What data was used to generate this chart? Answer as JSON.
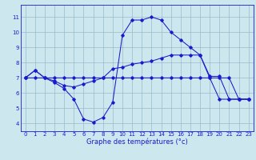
{
  "xlabel": "Graphe des températures (°c)",
  "ylim": [
    3.5,
    11.8
  ],
  "xlim": [
    -0.5,
    23.5
  ],
  "yticks": [
    4,
    5,
    6,
    7,
    8,
    9,
    10,
    11
  ],
  "xticks": [
    0,
    1,
    2,
    3,
    4,
    5,
    6,
    7,
    8,
    9,
    10,
    11,
    12,
    13,
    14,
    15,
    16,
    17,
    18,
    19,
    20,
    21,
    22,
    23
  ],
  "background_color": "#cce8ee",
  "line_color": "#1a1acc",
  "grid_color": "#99bbcc",
  "line1_max": {
    "x": [
      0,
      1,
      2,
      3,
      4,
      5,
      6,
      7,
      8,
      9,
      10,
      11,
      12,
      13,
      14,
      15,
      16,
      17,
      18,
      19,
      20,
      21,
      22,
      23
    ],
    "y": [
      7.0,
      7.5,
      7.0,
      6.7,
      6.3,
      5.6,
      4.3,
      4.1,
      4.4,
      5.4,
      9.8,
      10.8,
      10.8,
      11.0,
      10.8,
      10.0,
      9.5,
      9.0,
      8.5,
      7.0,
      5.6,
      5.6,
      5.6,
      5.6
    ]
  },
  "line2_mid": {
    "x": [
      0,
      1,
      2,
      3,
      4,
      5,
      6,
      7,
      8,
      9,
      10,
      11,
      12,
      13,
      14,
      15,
      16,
      17,
      18,
      19,
      20,
      21,
      22,
      23
    ],
    "y": [
      7.0,
      7.5,
      7.0,
      6.8,
      6.5,
      6.4,
      6.6,
      6.8,
      7.0,
      7.6,
      7.7,
      7.9,
      8.0,
      8.1,
      8.3,
      8.5,
      8.5,
      8.5,
      8.5,
      7.1,
      7.1,
      5.6,
      5.6,
      5.6
    ]
  },
  "line3_flat": {
    "x": [
      0,
      1,
      2,
      3,
      4,
      5,
      6,
      7,
      8,
      9,
      10,
      11,
      12,
      13,
      14,
      15,
      16,
      17,
      18,
      19,
      20,
      21,
      22,
      23
    ],
    "y": [
      7.0,
      7.0,
      7.0,
      7.0,
      7.0,
      7.0,
      7.0,
      7.0,
      7.0,
      7.0,
      7.0,
      7.0,
      7.0,
      7.0,
      7.0,
      7.0,
      7.0,
      7.0,
      7.0,
      7.0,
      7.0,
      7.0,
      5.6,
      5.6
    ]
  }
}
